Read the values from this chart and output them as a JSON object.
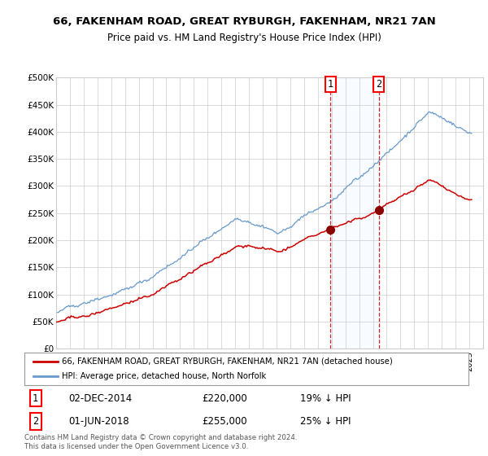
{
  "title1": "66, FAKENHAM ROAD, GREAT RYBURGH, FAKENHAM, NR21 7AN",
  "title2": "Price paid vs. HM Land Registry's House Price Index (HPI)",
  "legend1": "66, FAKENHAM ROAD, GREAT RYBURGH, FAKENHAM, NR21 7AN (detached house)",
  "legend2": "HPI: Average price, detached house, North Norfolk",
  "table1_date": "02-DEC-2014",
  "table1_price": "£220,000",
  "table1_pct": "19% ↓ HPI",
  "table2_date": "01-JUN-2018",
  "table2_price": "£255,000",
  "table2_pct": "25% ↓ HPI",
  "hpi_color": "#6699cc",
  "price_color": "#cc0000",
  "dot_color": "#8b0000",
  "background_color": "#ffffff",
  "grid_color": "#cccccc",
  "shade_color": "#ddeeff",
  "footer": "Contains HM Land Registry data © Crown copyright and database right 2024.\nThis data is licensed under the Open Government Licence v3.0.",
  "ylim": [
    0,
    500000
  ],
  "yticks": [
    0,
    50000,
    100000,
    150000,
    200000,
    250000,
    300000,
    350000,
    400000,
    450000,
    500000
  ],
  "ytick_labels": [
    "£0",
    "£50K",
    "£100K",
    "£150K",
    "£200K",
    "£250K",
    "£300K",
    "£350K",
    "£400K",
    "£450K",
    "£500K"
  ],
  "date1_year": 2014,
  "date1_month": 12,
  "date1_price": 220000,
  "date2_year": 2018,
  "date2_month": 6,
  "date2_price": 255000,
  "xstart_year": 1995,
  "xend_year": 2025
}
